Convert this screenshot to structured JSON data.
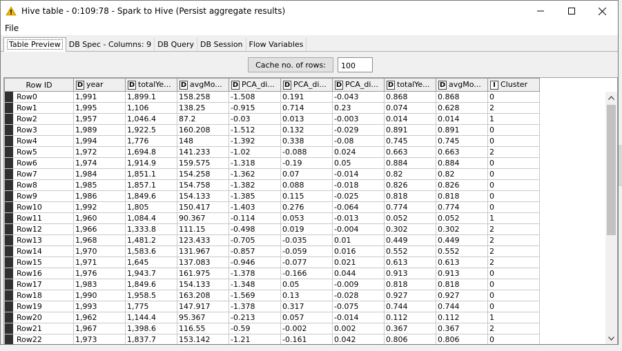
{
  "window": {
    "title": "Hive table - 0:109:78 - Spark to Hive (Persist aggregate results)",
    "icon": "warning-icon",
    "accent_color": "#f2b600"
  },
  "menu": {
    "file": "File"
  },
  "tabs": [
    {
      "label": "Table Preview",
      "active": true
    },
    {
      "label": "DB Spec - Columns: 9"
    },
    {
      "label": "DB Query"
    },
    {
      "label": "DB Session"
    },
    {
      "label": "Flow Variables"
    }
  ],
  "cache": {
    "label": "Cache no. of rows:",
    "value": "100"
  },
  "table": {
    "row_id_header": "Row ID",
    "columns": [
      {
        "type": "D",
        "name": "year"
      },
      {
        "type": "D",
        "name": "totalYe..."
      },
      {
        "type": "D",
        "name": "avgMo..."
      },
      {
        "type": "D",
        "name": "PCA_di..."
      },
      {
        "type": "D",
        "name": "PCA_di..."
      },
      {
        "type": "D",
        "name": "PCA_di..."
      },
      {
        "type": "D",
        "name": "totalYe..."
      },
      {
        "type": "D",
        "name": "avgMo..."
      },
      {
        "type": "I",
        "name": "Cluster"
      }
    ],
    "rows": [
      {
        "id": "Row0",
        "cells": [
          "1,991",
          "1,899.1",
          "158.258",
          "-1.508",
          "0.191",
          "-0.043",
          "0.868",
          "0.868",
          "0"
        ]
      },
      {
        "id": "Row1",
        "cells": [
          "1,995",
          "1,106",
          "138.25",
          "-0.915",
          "0.714",
          "0.23",
          "0.074",
          "0.628",
          "2"
        ]
      },
      {
        "id": "Row2",
        "cells": [
          "1,957",
          "1,046.4",
          "87.2",
          "-0.03",
          "0.013",
          "-0.003",
          "0.014",
          "0.014",
          "1"
        ]
      },
      {
        "id": "Row3",
        "cells": [
          "1,989",
          "1,922.5",
          "160.208",
          "-1.512",
          "0.132",
          "-0.029",
          "0.891",
          "0.891",
          "0"
        ]
      },
      {
        "id": "Row4",
        "cells": [
          "1,994",
          "1,776",
          "148",
          "-1.392",
          "0.338",
          "-0.08",
          "0.745",
          "0.745",
          "0"
        ]
      },
      {
        "id": "Row5",
        "cells": [
          "1,972",
          "1,694.8",
          "141.233",
          "-1.02",
          "-0.088",
          "0.024",
          "0.663",
          "0.663",
          "2"
        ]
      },
      {
        "id": "Row6",
        "cells": [
          "1,974",
          "1,914.9",
          "159.575",
          "-1.318",
          "-0.19",
          "0.05",
          "0.884",
          "0.884",
          "0"
        ]
      },
      {
        "id": "Row7",
        "cells": [
          "1,984",
          "1,851.1",
          "154.258",
          "-1.362",
          "0.07",
          "-0.014",
          "0.82",
          "0.82",
          "0"
        ]
      },
      {
        "id": "Row8",
        "cells": [
          "1,985",
          "1,857.1",
          "154.758",
          "-1.382",
          "0.088",
          "-0.018",
          "0.826",
          "0.826",
          "0"
        ]
      },
      {
        "id": "Row9",
        "cells": [
          "1,986",
          "1,849.6",
          "154.133",
          "-1.385",
          "0.115",
          "-0.025",
          "0.818",
          "0.818",
          "0"
        ]
      },
      {
        "id": "Row10",
        "cells": [
          "1,992",
          "1,805",
          "150.417",
          "-1.403",
          "0.276",
          "-0.064",
          "0.774",
          "0.774",
          "0"
        ]
      },
      {
        "id": "Row11",
        "cells": [
          "1,960",
          "1,084.4",
          "90.367",
          "-0.114",
          "0.053",
          "-0.013",
          "0.052",
          "0.052",
          "1"
        ]
      },
      {
        "id": "Row12",
        "cells": [
          "1,966",
          "1,333.8",
          "111.15",
          "-0.498",
          "0.019",
          "-0.004",
          "0.302",
          "0.302",
          "2"
        ]
      },
      {
        "id": "Row13",
        "cells": [
          "1,968",
          "1,481.2",
          "123.433",
          "-0.705",
          "-0.035",
          "0.01",
          "0.449",
          "0.449",
          "2"
        ]
      },
      {
        "id": "Row14",
        "cells": [
          "1,970",
          "1,583.6",
          "131.967",
          "-0.857",
          "-0.059",
          "0.016",
          "0.552",
          "0.552",
          "2"
        ]
      },
      {
        "id": "Row15",
        "cells": [
          "1,971",
          "1,645",
          "137.083",
          "-0.946",
          "-0.077",
          "0.021",
          "0.613",
          "0.613",
          "2"
        ]
      },
      {
        "id": "Row16",
        "cells": [
          "1,976",
          "1,943.7",
          "161.975",
          "-1.378",
          "-0.166",
          "0.044",
          "0.913",
          "0.913",
          "0"
        ]
      },
      {
        "id": "Row17",
        "cells": [
          "1,983",
          "1,849.6",
          "154.133",
          "-1.348",
          "0.05",
          "-0.009",
          "0.818",
          "0.818",
          "0"
        ]
      },
      {
        "id": "Row18",
        "cells": [
          "1,990",
          "1,958.5",
          "163.208",
          "-1.569",
          "0.13",
          "-0.028",
          "0.927",
          "0.927",
          "0"
        ]
      },
      {
        "id": "Row19",
        "cells": [
          "1,993",
          "1,775",
          "147.917",
          "-1.378",
          "0.317",
          "-0.075",
          "0.744",
          "0.744",
          "0"
        ]
      },
      {
        "id": "Row20",
        "cells": [
          "1,962",
          "1,144.4",
          "95.367",
          "-0.213",
          "0.057",
          "-0.014",
          "0.112",
          "0.112",
          "1"
        ]
      },
      {
        "id": "Row21",
        "cells": [
          "1,967",
          "1,398.6",
          "116.55",
          "-0.59",
          "-0.002",
          "0.002",
          "0.367",
          "0.367",
          "2"
        ]
      },
      {
        "id": "Row22",
        "cells": [
          "1,973",
          "1,837.7",
          "153.142",
          "-1.21",
          "-0.161",
          "0.042",
          "0.806",
          "0.806",
          "0"
        ]
      }
    ]
  }
}
